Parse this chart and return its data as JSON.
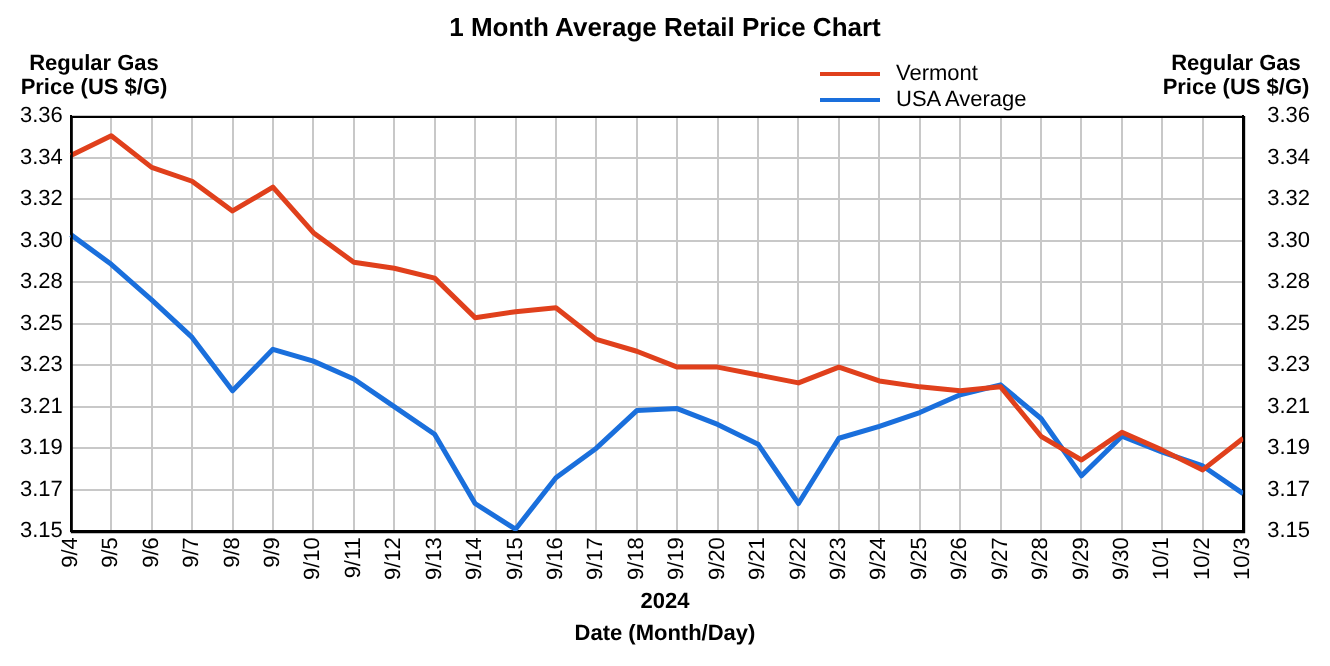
{
  "chart_data": {
    "type": "line",
    "title": "1 Month Average Retail Price Chart",
    "ylabel": "Regular Gas Price (US $/G)",
    "y2label": "Regular Gas Price (US $/G)",
    "xlabel": "Date (Month/Day)",
    "annotations": [
      "2024"
    ],
    "categories": [
      "9/4",
      "9/5",
      "9/6",
      "9/7",
      "9/8",
      "9/9",
      "9/10",
      "9/11",
      "9/12",
      "9/13",
      "9/14",
      "9/15",
      "9/16",
      "9/17",
      "9/18",
      "9/19",
      "9/20",
      "9/21",
      "9/22",
      "9/23",
      "9/24",
      "9/25",
      "9/26",
      "9/27",
      "9/28",
      "9/29",
      "9/30",
      "10/1",
      "10/2",
      "10/3"
    ],
    "series": [
      {
        "name": "Vermont",
        "color": "#e0401c",
        "values": [
          3.34,
          3.35,
          3.334,
          3.327,
          3.312,
          3.324,
          3.301,
          3.286,
          3.283,
          3.278,
          3.258,
          3.261,
          3.263,
          3.247,
          3.241,
          3.233,
          3.233,
          3.229,
          3.225,
          3.233,
          3.226,
          3.223,
          3.221,
          3.223,
          3.198,
          3.186,
          3.2,
          3.191,
          3.181,
          3.197
        ]
      },
      {
        "name": "USA Average",
        "color": "#1a6fdc",
        "values": [
          3.3,
          3.285,
          3.267,
          3.248,
          3.221,
          3.242,
          3.236,
          3.227,
          3.213,
          3.199,
          3.164,
          3.151,
          3.177,
          3.192,
          3.211,
          3.212,
          3.204,
          3.194,
          3.164,
          3.197,
          3.203,
          3.21,
          3.219,
          3.224,
          3.207,
          3.178,
          3.198,
          3.19,
          3.183,
          3.169
        ]
      }
    ],
    "ylim": [
      3.15,
      3.36
    ],
    "yticks": [
      {
        "value": 3.15,
        "label": "3.15"
      },
      {
        "value": 3.171,
        "label": "3.17"
      },
      {
        "value": 3.192,
        "label": "3.19"
      },
      {
        "value": 3.213,
        "label": "3.21"
      },
      {
        "value": 3.234,
        "label": "3.23"
      },
      {
        "value": 3.255,
        "label": "3.25"
      },
      {
        "value": 3.276,
        "label": "3.28"
      },
      {
        "value": 3.297,
        "label": "3.30"
      },
      {
        "value": 3.318,
        "label": "3.32"
      },
      {
        "value": 3.339,
        "label": "3.34"
      },
      {
        "value": 3.36,
        "label": "3.36"
      }
    ],
    "y2lim": [
      3.15,
      3.36
    ],
    "y2ticks": [
      {
        "value": 3.15,
        "label": "3.15"
      },
      {
        "value": 3.171,
        "label": "3.17"
      },
      {
        "value": 3.192,
        "label": "3.19"
      },
      {
        "value": 3.213,
        "label": "3.21"
      },
      {
        "value": 3.234,
        "label": "3.23"
      },
      {
        "value": 3.255,
        "label": "3.25"
      },
      {
        "value": 3.276,
        "label": "3.28"
      },
      {
        "value": 3.297,
        "label": "3.30"
      },
      {
        "value": 3.318,
        "label": "3.32"
      },
      {
        "value": 3.339,
        "label": "3.34"
      },
      {
        "value": 3.36,
        "label": "3.36"
      }
    ],
    "grid": true,
    "legend": "top right",
    "marker": "none",
    "line_style": "solid"
  }
}
